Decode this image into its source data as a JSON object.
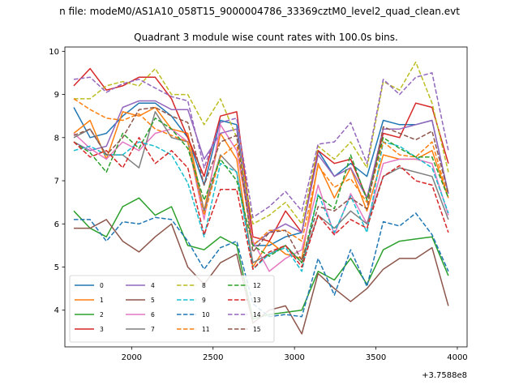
{
  "suptitle": "n file: modeM0/AS1A10_058T15_9000004786_33369cztM0_level2_quad_clean.evt",
  "chart_data": {
    "type": "line",
    "title": "Quadrant 3 module wise count rates with 100.0s bins.",
    "xlabel": "",
    "ylabel": "",
    "x_offset_label": "+3.7588e8",
    "xlim": [
      1590,
      4060
    ],
    "ylim": [
      3.15,
      10.1
    ],
    "xticks": [
      2000,
      2500,
      3000,
      3500,
      4000
    ],
    "yticks": [
      4,
      5,
      6,
      7,
      8,
      9,
      10
    ],
    "grid": false,
    "legend_position": "lower-left",
    "x": [
      1645,
      1745,
      1845,
      1945,
      2045,
      2145,
      2245,
      2345,
      2445,
      2545,
      2645,
      2745,
      2845,
      2945,
      3045,
      3145,
      3245,
      3345,
      3445,
      3545,
      3645,
      3745,
      3845,
      3945
    ],
    "series": [
      {
        "name": "0",
        "color": "#1f77b4",
        "dash": false,
        "values": [
          8.7,
          8.0,
          8.1,
          8.5,
          8.8,
          8.8,
          8.5,
          8.0,
          6.9,
          8.4,
          8.3,
          5.5,
          5.5,
          5.7,
          5.8,
          7.7,
          7.1,
          7.4,
          7.1,
          8.4,
          8.3,
          8.3,
          8.4,
          6.7
        ]
      },
      {
        "name": "1",
        "color": "#ff7f0e",
        "dash": false,
        "values": [
          8.1,
          8.4,
          7.5,
          8.6,
          8.5,
          8.7,
          8.2,
          8.1,
          6.3,
          8.1,
          7.5,
          5.0,
          5.6,
          5.3,
          5.2,
          7.4,
          6.6,
          7.3,
          6.3,
          7.6,
          7.5,
          7.5,
          7.7,
          6.6
        ]
      },
      {
        "name": "2",
        "color": "#2ca02c",
        "dash": false,
        "values": [
          6.3,
          5.9,
          5.7,
          6.4,
          6.6,
          6.2,
          6.4,
          5.5,
          5.4,
          5.7,
          5.5,
          3.8,
          3.9,
          3.95,
          4.0,
          4.9,
          4.7,
          5.2,
          4.6,
          5.4,
          5.6,
          5.65,
          5.7,
          4.8
        ]
      },
      {
        "name": "3",
        "color": "#d62728",
        "dash": false,
        "values": [
          9.2,
          9.6,
          9.1,
          9.2,
          9.4,
          9.4,
          8.9,
          8.0,
          7.1,
          8.5,
          8.6,
          5.7,
          5.6,
          6.3,
          5.8,
          7.7,
          7.4,
          7.5,
          6.6,
          8.1,
          8.0,
          8.8,
          8.7,
          7.4
        ]
      },
      {
        "name": "4",
        "color": "#9467bd",
        "dash": false,
        "values": [
          7.9,
          7.7,
          7.8,
          8.7,
          8.85,
          8.85,
          8.65,
          8.65,
          7.5,
          8.1,
          8.2,
          5.5,
          5.8,
          6.0,
          5.8,
          7.6,
          7.1,
          7.3,
          6.6,
          8.2,
          8.2,
          8.3,
          8.4,
          6.7
        ]
      },
      {
        "name": "5",
        "color": "#8c564b",
        "dash": false,
        "values": [
          5.9,
          5.9,
          6.1,
          5.6,
          5.35,
          5.7,
          6.0,
          5.0,
          4.6,
          5.1,
          5.3,
          3.7,
          4.0,
          4.1,
          3.45,
          4.85,
          4.5,
          4.2,
          4.5,
          4.95,
          5.2,
          5.2,
          5.45,
          4.1
        ]
      },
      {
        "name": "6",
        "color": "#e377c2",
        "dash": false,
        "values": [
          8.1,
          7.75,
          7.5,
          7.9,
          7.7,
          8.1,
          8.2,
          7.9,
          6.1,
          8.3,
          7.7,
          5.6,
          4.9,
          5.2,
          5.4,
          6.9,
          5.75,
          6.7,
          6.0,
          7.4,
          7.5,
          7.5,
          7.4,
          6.2
        ]
      },
      {
        "name": "7",
        "color": "#7f7f7f",
        "dash": false,
        "values": [
          8.0,
          8.2,
          7.6,
          7.6,
          7.3,
          8.6,
          8.0,
          7.9,
          6.3,
          7.6,
          7.2,
          5.1,
          5.3,
          5.5,
          5.1,
          6.2,
          5.9,
          6.3,
          6.0,
          7.1,
          7.3,
          7.2,
          7.1,
          6.1
        ]
      },
      {
        "name": "8",
        "color": "#bcbd22",
        "dash": true,
        "values": [
          8.9,
          8.9,
          9.2,
          9.3,
          9.2,
          9.6,
          9.0,
          9.0,
          8.3,
          8.9,
          8.0,
          6.0,
          6.2,
          6.5,
          6.0,
          7.8,
          7.5,
          7.9,
          7.3,
          9.3,
          9.1,
          9.75,
          8.8,
          7.2
        ]
      },
      {
        "name": "9",
        "color": "#17becf",
        "dash": true,
        "values": [
          7.7,
          7.8,
          7.6,
          7.6,
          7.9,
          7.8,
          7.6,
          6.95,
          5.7,
          7.4,
          7.2,
          4.95,
          5.3,
          5.45,
          4.9,
          6.7,
          5.8,
          6.65,
          5.8,
          7.9,
          7.8,
          7.55,
          7.3,
          6.25
        ]
      },
      {
        "name": "10",
        "color": "#1f77b4",
        "dash": true,
        "values": [
          6.1,
          6.1,
          5.6,
          6.05,
          6.0,
          6.15,
          6.1,
          5.6,
          4.95,
          5.45,
          5.6,
          4.15,
          3.85,
          3.9,
          3.85,
          5.2,
          4.35,
          5.4,
          4.55,
          6.05,
          5.95,
          6.25,
          5.75,
          4.9
        ]
      },
      {
        "name": "11",
        "color": "#ff7f0e",
        "dash": true,
        "values": [
          8.9,
          8.65,
          8.45,
          8.4,
          8.55,
          8.2,
          8.05,
          7.9,
          6.2,
          7.55,
          7.85,
          5.5,
          5.85,
          5.85,
          5.6,
          7.35,
          6.85,
          7.05,
          6.5,
          7.9,
          7.6,
          7.55,
          7.9,
          6.6
        ]
      },
      {
        "name": "12",
        "color": "#2ca02c",
        "dash": true,
        "values": [
          7.9,
          7.65,
          7.2,
          8.1,
          7.75,
          8.45,
          8.2,
          7.75,
          6.55,
          7.5,
          7.0,
          5.5,
          5.25,
          5.5,
          5.1,
          6.65,
          6.35,
          7.6,
          6.55,
          8.0,
          7.75,
          7.55,
          7.55,
          6.6
        ]
      },
      {
        "name": "13",
        "color": "#d62728",
        "dash": true,
        "values": [
          7.9,
          7.55,
          7.7,
          7.3,
          8.0,
          7.4,
          7.7,
          7.3,
          5.75,
          6.8,
          6.8,
          4.95,
          5.35,
          5.5,
          5.0,
          6.2,
          5.75,
          6.1,
          5.9,
          7.1,
          7.35,
          7.0,
          6.9,
          5.8
        ]
      },
      {
        "name": "14",
        "color": "#9467bd",
        "dash": true,
        "values": [
          9.35,
          9.4,
          9.05,
          9.25,
          9.35,
          9.15,
          8.95,
          8.85,
          7.3,
          8.35,
          8.45,
          6.15,
          6.4,
          6.75,
          6.3,
          7.85,
          7.9,
          8.35,
          7.4,
          9.35,
          9.0,
          9.4,
          9.5,
          7.7
        ]
      },
      {
        "name": "15",
        "color": "#8c564b",
        "dash": true,
        "values": [
          8.05,
          8.2,
          7.6,
          8.0,
          8.65,
          8.7,
          8.5,
          8.35,
          6.9,
          7.9,
          8.05,
          5.35,
          5.8,
          5.85,
          5.15,
          6.4,
          6.3,
          6.6,
          6.35,
          8.25,
          8.1,
          7.95,
          8.15,
          6.7
        ]
      }
    ]
  }
}
